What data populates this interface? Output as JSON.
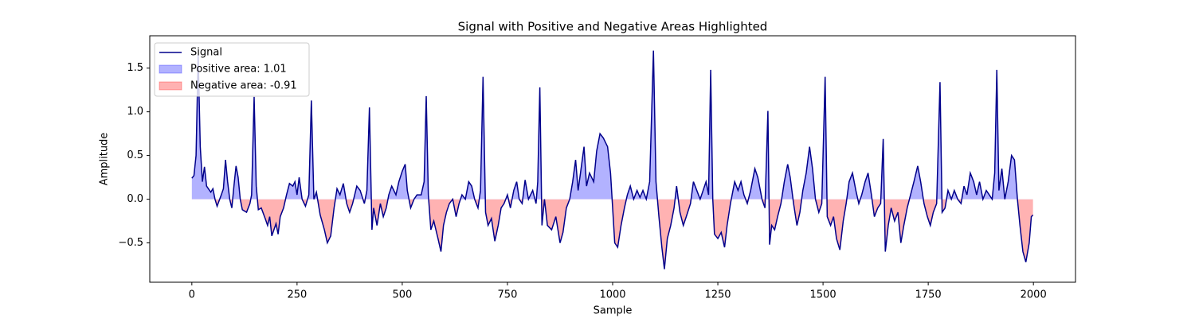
{
  "chart_data": {
    "type": "line",
    "title": "Signal with Positive and Negative Areas Highlighted",
    "xlabel": "Sample",
    "ylabel": "Amplitude",
    "xlim": [
      -100,
      2100
    ],
    "ylim": [
      -0.95,
      1.87
    ],
    "xticks": [
      0,
      250,
      500,
      750,
      1000,
      1250,
      1500,
      1750,
      2000
    ],
    "yticks": [
      {
        "value": -0.5,
        "label": "−0.5"
      },
      {
        "value": 0,
        "label": "0.0"
      },
      {
        "value": 0.5,
        "label": "0.5"
      },
      {
        "value": 1,
        "label": "1.0"
      },
      {
        "value": 1.5,
        "label": "1.5"
      }
    ],
    "legend": "upper left",
    "fills": [
      {
        "name": "Positive area: 1.01",
        "color": "#0000ff",
        "where": "above"
      },
      {
        "name": "Negative area: -0.91",
        "color": "#ff0000",
        "where": "below"
      }
    ],
    "x": [
      0,
      5,
      10,
      15,
      20,
      25,
      30,
      35,
      45,
      50,
      55,
      60,
      70,
      75,
      80,
      85,
      90,
      95,
      100,
      105,
      110,
      115,
      120,
      130,
      138,
      142,
      148,
      153,
      158,
      165,
      175,
      180,
      185,
      190,
      200,
      205,
      210,
      218,
      225,
      232,
      240,
      245,
      250,
      255,
      262,
      270,
      278,
      284,
      290,
      296,
      305,
      315,
      322,
      330,
      338,
      345,
      352,
      360,
      368,
      375,
      382,
      392,
      400,
      410,
      416,
      422,
      428,
      432,
      440,
      448,
      455,
      462,
      468,
      475,
      485,
      492,
      500,
      507,
      512,
      520,
      528,
      535,
      545,
      552,
      557,
      562,
      568,
      575,
      585,
      592,
      598,
      605,
      612,
      620,
      628,
      635,
      642,
      650,
      658,
      665,
      672,
      680,
      686,
      692,
      698,
      704,
      712,
      720,
      728,
      735,
      742,
      750,
      757,
      765,
      772,
      778,
      785,
      792,
      800,
      810,
      818,
      822,
      827,
      832,
      838,
      845,
      855,
      865,
      875,
      882,
      890,
      898,
      905,
      912,
      918,
      925,
      932,
      938,
      945,
      955,
      962,
      970,
      978,
      988,
      995,
      1000,
      1005,
      1012,
      1020,
      1028,
      1035,
      1042,
      1050,
      1058,
      1065,
      1072,
      1080,
      1088,
      1097,
      1103,
      1110,
      1117,
      1123,
      1130,
      1138,
      1146,
      1152,
      1160,
      1168,
      1175,
      1185,
      1192,
      1200,
      1208,
      1215,
      1222,
      1228,
      1233,
      1238,
      1242,
      1250,
      1258,
      1266,
      1272,
      1280,
      1290,
      1298,
      1305,
      1312,
      1320,
      1328,
      1338,
      1345,
      1355,
      1362,
      1369,
      1373,
      1378,
      1385,
      1392,
      1400,
      1408,
      1416,
      1422,
      1430,
      1438,
      1445,
      1452,
      1460,
      1468,
      1475,
      1482,
      1490,
      1497,
      1505,
      1510,
      1518,
      1525,
      1532,
      1540,
      1548,
      1555,
      1562,
      1570,
      1578,
      1585,
      1592,
      1600,
      1607,
      1615,
      1622,
      1630,
      1637,
      1643,
      1648,
      1655,
      1662,
      1670,
      1678,
      1685,
      1692,
      1700,
      1708,
      1716,
      1725,
      1732,
      1740,
      1748,
      1755,
      1762,
      1770,
      1778,
      1783,
      1790,
      1797,
      1805,
      1812,
      1820,
      1828,
      1835,
      1842,
      1850,
      1858,
      1865,
      1872,
      1880,
      1888,
      1895,
      1902,
      1908,
      1913,
      1918,
      1925,
      1932,
      1940,
      1948,
      1955,
      1962,
      1968,
      1975,
      1982,
      1990,
      1995,
      1999
    ],
    "series": [
      {
        "name": "Signal",
        "color": "#00008b",
        "values": [
          0.24,
          0.27,
          0.5,
          1.65,
          0.6,
          0.2,
          0.37,
          0.15,
          0.08,
          0.12,
          0.0,
          -0.08,
          0.05,
          0.12,
          0.45,
          0.2,
          0.0,
          -0.1,
          0.15,
          0.38,
          0.25,
          0.0,
          -0.12,
          -0.15,
          -0.05,
          0.05,
          1.17,
          0.15,
          -0.12,
          -0.1,
          -0.23,
          -0.3,
          -0.2,
          -0.42,
          -0.28,
          -0.4,
          -0.2,
          -0.1,
          0.05,
          0.18,
          0.15,
          0.2,
          0.05,
          0.25,
          0.0,
          -0.08,
          0.05,
          1.13,
          0.0,
          0.08,
          -0.18,
          -0.35,
          -0.5,
          -0.42,
          -0.1,
          0.12,
          0.05,
          0.18,
          -0.05,
          -0.15,
          -0.05,
          0.15,
          0.1,
          -0.05,
          0.1,
          1.05,
          -0.35,
          -0.1,
          -0.3,
          -0.05,
          -0.2,
          -0.1,
          0.05,
          0.15,
          0.05,
          0.2,
          0.32,
          0.4,
          0.1,
          -0.1,
          0.0,
          0.05,
          0.05,
          0.2,
          1.18,
          0.05,
          -0.35,
          -0.25,
          -0.45,
          -0.6,
          -0.3,
          -0.15,
          -0.05,
          0.0,
          -0.2,
          -0.05,
          0.05,
          0.0,
          0.2,
          0.15,
          0.0,
          -0.1,
          0.1,
          1.4,
          -0.15,
          -0.3,
          -0.22,
          -0.48,
          -0.3,
          -0.1,
          -0.05,
          0.05,
          -0.1,
          0.1,
          0.2,
          0.0,
          -0.05,
          0.22,
          0.0,
          0.1,
          -0.05,
          0.2,
          1.28,
          -0.3,
          0.0,
          -0.3,
          -0.35,
          -0.2,
          -0.5,
          -0.38,
          -0.1,
          0.0,
          0.2,
          0.45,
          0.1,
          0.35,
          0.6,
          0.15,
          0.3,
          0.2,
          0.55,
          0.75,
          0.7,
          0.6,
          0.3,
          -0.1,
          -0.5,
          -0.55,
          -0.3,
          -0.1,
          0.05,
          0.15,
          0.0,
          0.1,
          0.02,
          0.1,
          0.0,
          0.2,
          1.7,
          0.2,
          -0.2,
          -0.55,
          -0.8,
          -0.45,
          -0.3,
          -0.1,
          0.15,
          -0.15,
          -0.3,
          -0.2,
          -0.05,
          0.2,
          0.1,
          0.0,
          0.1,
          0.2,
          0.05,
          1.48,
          0.0,
          -0.4,
          -0.45,
          -0.38,
          -0.55,
          -0.3,
          -0.05,
          0.2,
          0.1,
          0.2,
          0.05,
          -0.05,
          0.1,
          0.35,
          0.25,
          0.0,
          -0.1,
          1.01,
          -0.52,
          -0.3,
          -0.35,
          -0.2,
          -0.05,
          0.2,
          0.4,
          0.25,
          -0.05,
          -0.3,
          -0.15,
          0.1,
          0.3,
          0.6,
          0.35,
          0.0,
          -0.15,
          -0.05,
          1.4,
          -0.2,
          -0.3,
          -0.2,
          -0.45,
          -0.58,
          -0.25,
          -0.05,
          0.2,
          0.3,
          0.1,
          -0.05,
          0.05,
          0.2,
          0.3,
          0.05,
          -0.2,
          -0.1,
          -0.05,
          0.69,
          -0.6,
          -0.3,
          -0.1,
          -0.25,
          -0.15,
          -0.5,
          -0.3,
          -0.1,
          0.05,
          0.2,
          0.38,
          0.2,
          -0.05,
          -0.2,
          -0.3,
          -0.15,
          -0.05,
          1.34,
          -0.15,
          -0.1,
          0.1,
          0.0,
          0.1,
          0.0,
          -0.05,
          0.15,
          0.05,
          0.3,
          0.2,
          0.05,
          0.2,
          0.0,
          0.1,
          0.05,
          0.0,
          0.3,
          1.48,
          0.1,
          0.35,
          0.0,
          0.2,
          0.5,
          0.45,
          0.0,
          -0.3,
          -0.6,
          -0.72,
          -0.5,
          -0.2,
          -0.18
        ]
      }
    ]
  }
}
